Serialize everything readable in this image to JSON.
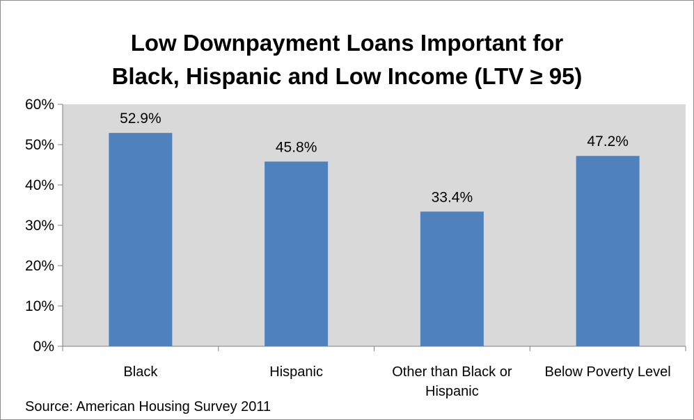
{
  "chart_data": {
    "type": "bar",
    "title": "Low Downpayment Loans Important for Black, Hispanic and Low Income (LTV ≥ 95)",
    "title_lines": [
      "Low Downpayment Loans Important for",
      "Black, Hispanic and Low Income (LTV ≥ 95)"
    ],
    "categories": [
      "Black",
      "Hispanic",
      "Other than Black or Hispanic",
      "Below Poverty Level"
    ],
    "category_lines": [
      [
        "Black"
      ],
      [
        "Hispanic"
      ],
      [
        "Other than Black or",
        "Hispanic"
      ],
      [
        "Below Poverty Level"
      ]
    ],
    "values": [
      52.9,
      45.8,
      33.4,
      47.2
    ],
    "data_labels": [
      "52.9%",
      "45.8%",
      "33.4%",
      "47.2%"
    ],
    "ylim": [
      0,
      60
    ],
    "y_ticks": [
      0,
      10,
      20,
      30,
      40,
      50,
      60
    ],
    "y_tick_labels": [
      "0%",
      "10%",
      "20%",
      "30%",
      "40%",
      "50%",
      "60%"
    ],
    "xlabel": "",
    "ylabel": "",
    "grid": false,
    "legend": "none",
    "plot_background": "#d9d9d9",
    "bar_color": "#4f81bd",
    "source": "Source: American Housing Survey 2011"
  }
}
